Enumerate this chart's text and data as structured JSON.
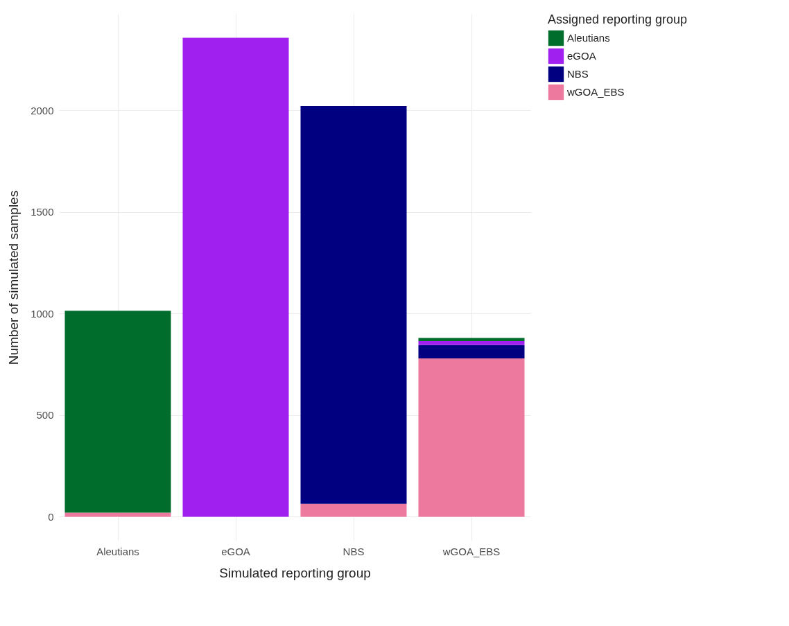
{
  "chart_data": {
    "type": "bar",
    "stacked": true,
    "xlabel": "Simulated reporting group",
    "ylabel": "Number of simulated samples",
    "legend_title": "Assigned reporting group",
    "legend": "right",
    "grid": true,
    "categories": [
      "Aleutians",
      "eGOA",
      "NBS",
      "wGOA_EBS"
    ],
    "series": [
      {
        "name": "wGOA_EBS",
        "color": "#ee799f",
        "values": [
          20,
          0,
          64,
          780
        ]
      },
      {
        "name": "NBS",
        "color": "#000080",
        "values": [
          0,
          0,
          1958,
          65
        ]
      },
      {
        "name": "eGOA",
        "color": "#a020f0",
        "values": [
          0,
          2358,
          0,
          20
        ]
      },
      {
        "name": "Aleutians",
        "color": "#006d2c",
        "values": [
          994,
          0,
          0,
          15
        ]
      }
    ],
    "ylim": [
      -118,
      2476
    ],
    "yticks": [
      0,
      500,
      1000,
      1500,
      2000
    ]
  }
}
